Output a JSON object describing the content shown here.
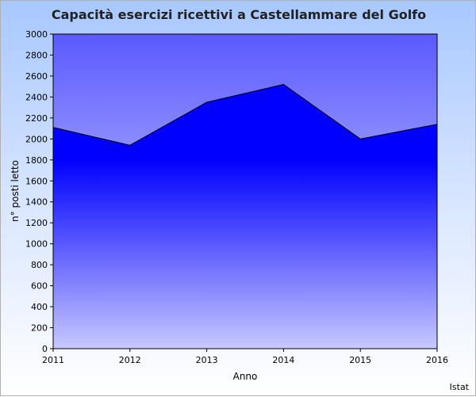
{
  "chart_data": {
    "type": "area",
    "title": "Capacità esercizi ricettivi a Castellammare del Golfo",
    "xlabel": "Anno",
    "ylabel": "n° posti letto",
    "x": [
      "2011",
      "2012",
      "2013",
      "2014",
      "2015",
      "2016"
    ],
    "series": [
      {
        "values": [
          2110,
          1940,
          2350,
          2520,
          2000,
          2140
        ]
      }
    ],
    "ylim": [
      0,
      3000
    ],
    "yticks": [
      0,
      200,
      400,
      600,
      800,
      1000,
      1200,
      1400,
      1600,
      1800,
      2000,
      2200,
      2400,
      2600,
      2800,
      3000
    ],
    "grid": false,
    "legend": "none",
    "colors": {
      "area_top": "#0000ff",
      "area_bottom": "#c8c8ff",
      "plot_bg_top": "#5a5aff",
      "plot_bg_bottom": "#e4e6ff"
    }
  },
  "source": "Istat"
}
